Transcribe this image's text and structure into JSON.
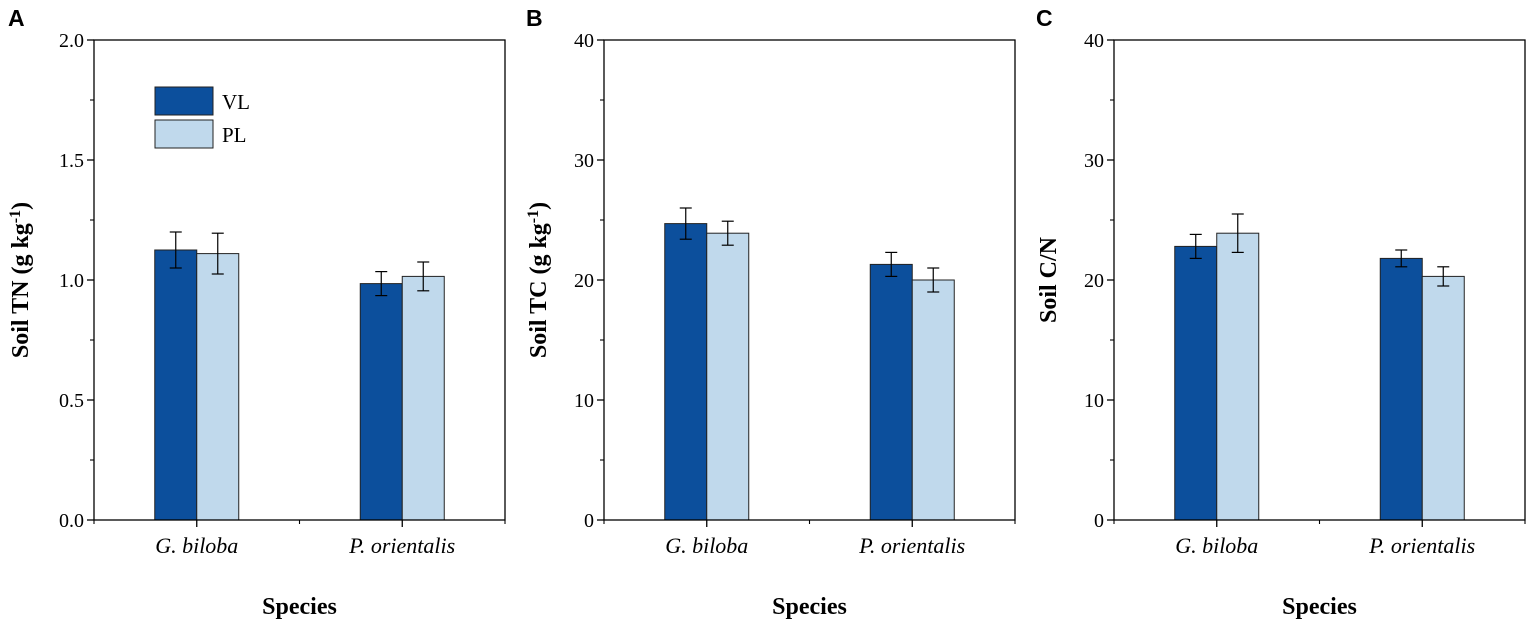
{
  "legend": [
    {
      "label": "VL",
      "color": "#0c4f9c"
    },
    {
      "label": "PL",
      "color": "#c0d9ec"
    }
  ],
  "chart_data": [
    {
      "type": "bar",
      "panel": "A",
      "categories": [
        "G. biloba",
        "P. orientalis"
      ],
      "series": [
        {
          "name": "VL",
          "values": [
            1.125,
            0.985
          ],
          "errors": [
            0.075,
            0.05
          ]
        },
        {
          "name": "PL",
          "values": [
            1.11,
            1.015
          ],
          "errors": [
            0.085,
            0.06
          ]
        }
      ],
      "xlabel": "Species",
      "ylabel": "Soil TN (g kg",
      "ylabel_sup": "-1",
      "ylabel_tail": ")",
      "ylim": [
        0,
        2.0
      ],
      "yticks": [
        "0.0",
        "0.5",
        "1.0",
        "1.5",
        "2.0"
      ],
      "ytick_values": [
        0,
        0.5,
        1.0,
        1.5,
        2.0
      ],
      "legend": true,
      "legend_position": "top-left"
    },
    {
      "type": "bar",
      "panel": "B",
      "categories": [
        "G. biloba",
        "P. orientalis"
      ],
      "series": [
        {
          "name": "VL",
          "values": [
            24.7,
            21.3
          ],
          "errors": [
            1.3,
            1.0
          ]
        },
        {
          "name": "PL",
          "values": [
            23.9,
            20.0
          ],
          "errors": [
            1.0,
            1.0
          ]
        }
      ],
      "xlabel": "Species",
      "ylabel": "Soil TC (g kg",
      "ylabel_sup": "-1",
      "ylabel_tail": ")",
      "ylim": [
        0,
        40
      ],
      "yticks": [
        "0",
        "10",
        "20",
        "30",
        "40"
      ],
      "ytick_values": [
        0,
        10,
        20,
        30,
        40
      ],
      "legend": false
    },
    {
      "type": "bar",
      "panel": "C",
      "categories": [
        "G. biloba",
        "P. orientalis"
      ],
      "series": [
        {
          "name": "VL",
          "values": [
            22.8,
            21.8
          ],
          "errors": [
            1.0,
            0.7
          ]
        },
        {
          "name": "PL",
          "values": [
            23.9,
            20.3
          ],
          "errors": [
            1.6,
            0.8
          ]
        }
      ],
      "xlabel": "Species",
      "ylabel": "Soil C/N",
      "ylabel_sup": "",
      "ylabel_tail": "",
      "ylim": [
        0,
        40
      ],
      "yticks": [
        "0",
        "10",
        "20",
        "30",
        "40"
      ],
      "ytick_values": [
        0,
        10,
        20,
        30,
        40
      ],
      "legend": false
    }
  ]
}
